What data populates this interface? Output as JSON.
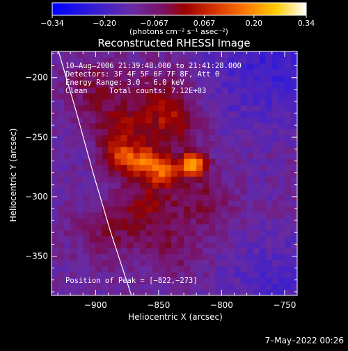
{
  "chart_data": {
    "type": "heatmap",
    "title": "Reconstructed RHESSI Image",
    "xlabel": "Heliocentric X (arcsec)",
    "ylabel": "Heliocentric Y (arcsec)",
    "xlim": [
      -935,
      -740
    ],
    "ylim": [
      -383,
      -178
    ],
    "x_ticks": [
      -900,
      -850,
      -800,
      -750
    ],
    "y_ticks": [
      -350,
      -300,
      -250,
      -200
    ],
    "x_tick_labels": [
      "−900",
      "−850",
      "−800",
      "−750"
    ],
    "y_tick_labels": [
      "−350",
      "−300",
      "−250",
      "−200"
    ],
    "colorbar": {
      "range": [
        -0.34,
        0.34
      ],
      "ticks": [
        -0.34,
        -0.2,
        -0.067,
        0.067,
        0.2,
        0.34
      ],
      "tick_labels": [
        "−0.34",
        "−0.20",
        "−0.067",
        "0.067",
        "0.20",
        "0.34"
      ],
      "unit_label": "(photons cm⁻² s⁻¹ asec⁻²)"
    },
    "annotations": [
      "10–Aug–2006 21:39:48.000 to 21:41:28.000",
      "Detectors: 3F 4F 5F 6F 7F 8F, Att 0",
      "Energy Range: 3.0 – 6.0 keV",
      "Clean     Total counts: 7.12E+03"
    ],
    "peak_label": "Position of Peak = [−822,−273]",
    "peak": {
      "x": -822,
      "y": -273
    },
    "sources": [
      {
        "x": -822,
        "y": -273,
        "amp": 0.34,
        "sigma": 7
      },
      {
        "x": -845,
        "y": -278,
        "amp": 0.22,
        "sigma": 9
      },
      {
        "x": -862,
        "y": -270,
        "amp": 0.2,
        "sigma": 9
      },
      {
        "x": -882,
        "y": -268,
        "amp": 0.17,
        "sigma": 10
      },
      {
        "x": -880,
        "y": -245,
        "amp": 0.14,
        "sigma": 14
      },
      {
        "x": -840,
        "y": -240,
        "amp": 0.13,
        "sigma": 16
      },
      {
        "x": -860,
        "y": -305,
        "amp": 0.13,
        "sigma": 16
      },
      {
        "x": -900,
        "y": -210,
        "amp": 0.1,
        "sigma": 18
      },
      {
        "x": -815,
        "y": -305,
        "amp": 0.1,
        "sigma": 16
      },
      {
        "x": -890,
        "y": -330,
        "amp": 0.09,
        "sigma": 18
      },
      {
        "x": -840,
        "y": -345,
        "amp": 0.08,
        "sigma": 16
      },
      {
        "x": -850,
        "y": -215,
        "amp": 0.09,
        "sigma": 18
      }
    ],
    "limb_curve": [
      {
        "x": -930,
        "y": -176
      },
      {
        "x": -915,
        "y": -230
      },
      {
        "x": -902,
        "y": -280
      },
      {
        "x": -888,
        "y": -330
      },
      {
        "x": -871,
        "y": -385
      }
    ],
    "grid": false,
    "legend": "colorbar-top"
  },
  "footer": {
    "date": "7–May–2022 00:26"
  },
  "colors": {
    "background": "#000000",
    "text": "#ffffff"
  }
}
